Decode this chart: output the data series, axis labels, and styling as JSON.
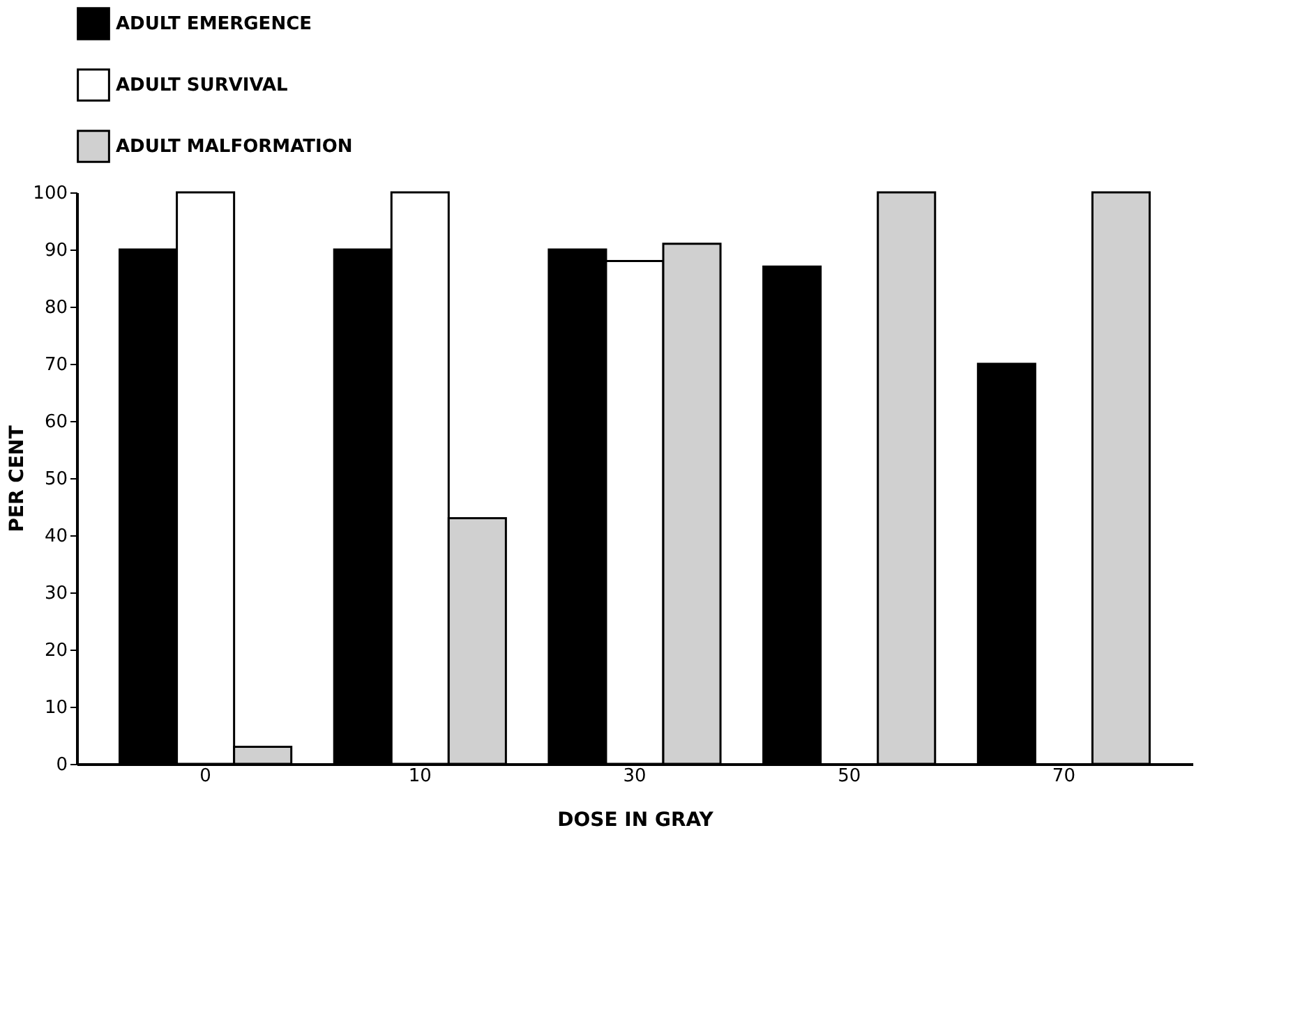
{
  "chart_data": {
    "type": "bar",
    "xlabel": "DOSE IN GRAY",
    "ylabel": "PER CENT",
    "categories": [
      "0",
      "10",
      "30",
      "50",
      "70"
    ],
    "series": [
      {
        "name": "ADULT EMERGENCE",
        "color": "#000000",
        "values": [
          90,
          90,
          90,
          87,
          70
        ]
      },
      {
        "name": "ADULT SURVIVAL",
        "color": "#ffffff",
        "values": [
          100,
          100,
          88,
          null,
          null
        ]
      },
      {
        "name": "ADULT MALFORMATION",
        "color": "#d0d0d0",
        "values": [
          3,
          43,
          91,
          100,
          100
        ]
      }
    ],
    "ylim": [
      0,
      100
    ],
    "yticks": [
      0,
      10,
      20,
      30,
      40,
      50,
      60,
      70,
      80,
      90,
      100
    ],
    "grid": false,
    "legend": "top"
  }
}
